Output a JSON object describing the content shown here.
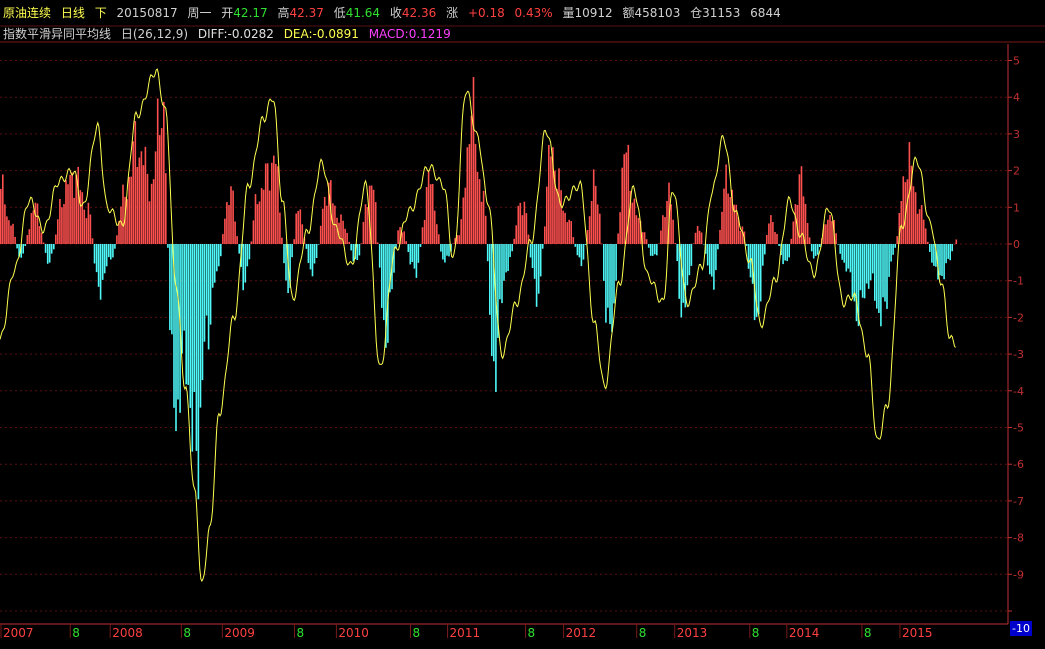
{
  "header": {
    "title": "原油连续",
    "period": "日线",
    "direction": "下",
    "date": "20150817",
    "weekday": "周一",
    "open_label": "开",
    "open": "42.17",
    "high_label": "高",
    "high": "42.37",
    "low_label": "低",
    "low": "41.64",
    "close_label": "收",
    "close": "42.36",
    "change_label": "涨",
    "change": "+0.18",
    "change_pct": "0.43%",
    "volume": "量10912",
    "amount": "额458103",
    "open_interest": "仓31153",
    "extra": "6844"
  },
  "indicator": {
    "name": "指数平滑异同平均线",
    "params": "日(26,12,9)",
    "diff": "DIFF:-0.0282",
    "dea": "DEA:-0.0891",
    "macd": "MACD:0.1219"
  },
  "colors": {
    "positive_bar": "#ff5050",
    "negative_bar": "#4ff8f8",
    "dea_line": "#ffff50",
    "axis": "#c03030",
    "up_text": "#ff4040",
    "down_text": "#30e030"
  },
  "chart_data": {
    "type": "bar",
    "y_ticks": [
      "5",
      "4",
      "3",
      "2",
      "1",
      "0",
      "-1",
      "-2",
      "-3",
      "-4",
      "-5",
      "-6",
      "-7",
      "-8",
      "-9",
      "-10"
    ],
    "ylim": [
      -10,
      5.5
    ],
    "x_labels": [
      "2007",
      "8",
      "2008",
      "8",
      "2009",
      "8",
      "2010",
      "8",
      "2011",
      "8",
      "2012",
      "8",
      "2013",
      "8",
      "2014",
      "8",
      "2015"
    ],
    "x_label_colors": [
      "#ff4040",
      "#30e030",
      "#ff4040",
      "#30e030",
      "#ff4040",
      "#30e030",
      "#ff4040",
      "#30e030",
      "#ff4040",
      "#30e030",
      "#ff4040",
      "#30e030",
      "#ff4040",
      "#30e030",
      "#ff4040",
      "#30e030",
      "#ff4040"
    ],
    "x_label_positions": [
      0,
      0.071,
      0.112,
      0.185,
      0.227,
      0.301,
      0.344,
      0.42,
      0.458,
      0.538,
      0.577,
      0.652,
      0.691,
      0.768,
      0.806,
      0.883,
      0.922
    ],
    "bottom_badge": "-10",
    "series": [
      {
        "name": "MACD",
        "anchors": [
          [
            0,
            1.5
          ],
          [
            0.01,
            0.6
          ],
          [
            0.02,
            -0.4
          ],
          [
            0.035,
            1.0
          ],
          [
            0.05,
            -0.5
          ],
          [
            0.065,
            1.4
          ],
          [
            0.075,
            1.9
          ],
          [
            0.09,
            0.9
          ],
          [
            0.1,
            -1.2
          ],
          [
            0.115,
            -0.3
          ],
          [
            0.125,
            1.2
          ],
          [
            0.14,
            2.7
          ],
          [
            0.155,
            1.6
          ],
          [
            0.165,
            4.0
          ],
          [
            0.178,
            -4.5
          ],
          [
            0.19,
            -3.2
          ],
          [
            0.2,
            -6.0
          ],
          [
            0.21,
            -2.8
          ],
          [
            0.22,
            -1.0
          ],
          [
            0.235,
            1.4
          ],
          [
            0.25,
            -1.0
          ],
          [
            0.265,
            1.4
          ],
          [
            0.28,
            2.3
          ],
          [
            0.295,
            -1.2
          ],
          [
            0.305,
            0.9
          ],
          [
            0.32,
            -0.8
          ],
          [
            0.335,
            1.5
          ],
          [
            0.35,
            0.6
          ],
          [
            0.365,
            -0.5
          ],
          [
            0.38,
            1.7
          ],
          [
            0.395,
            -2.4
          ],
          [
            0.41,
            0.5
          ],
          [
            0.425,
            -0.8
          ],
          [
            0.44,
            1.7
          ],
          [
            0.455,
            -0.5
          ],
          [
            0.47,
            0.3
          ],
          [
            0.483,
            3.5
          ],
          [
            0.495,
            1.2
          ],
          [
            0.505,
            -3.3
          ],
          [
            0.52,
            -0.6
          ],
          [
            0.535,
            1.2
          ],
          [
            0.55,
            -1.4
          ],
          [
            0.565,
            2.5
          ],
          [
            0.58,
            0.8
          ],
          [
            0.595,
            -0.5
          ],
          [
            0.61,
            1.6
          ],
          [
            0.625,
            -2.5
          ],
          [
            0.64,
            2.4
          ],
          [
            0.655,
            0.6
          ],
          [
            0.67,
            -0.4
          ],
          [
            0.685,
            1.3
          ],
          [
            0.7,
            -1.8
          ],
          [
            0.715,
            0.5
          ],
          [
            0.73,
            -1.0
          ],
          [
            0.745,
            1.7
          ],
          [
            0.76,
            0.5
          ],
          [
            0.775,
            -1.9
          ],
          [
            0.79,
            0.7
          ],
          [
            0.805,
            -0.6
          ],
          [
            0.82,
            1.7
          ],
          [
            0.835,
            -0.4
          ],
          [
            0.85,
            0.8
          ],
          [
            0.865,
            -0.5
          ],
          [
            0.88,
            -1.9
          ],
          [
            0.89,
            -1.0
          ],
          [
            0.905,
            -2.0
          ],
          [
            0.915,
            -0.3
          ],
          [
            0.93,
            2.2
          ],
          [
            0.945,
            0.8
          ],
          [
            0.955,
            -0.4
          ],
          [
            0.962,
            -1.0
          ],
          [
            0.972,
            -0.5
          ],
          [
            0.98,
            0.1
          ]
        ]
      },
      {
        "name": "DEA",
        "anchors": [
          [
            0,
            -2.6
          ],
          [
            0.015,
            -0.7
          ],
          [
            0.03,
            1.2
          ],
          [
            0.045,
            0.4
          ],
          [
            0.06,
            1.7
          ],
          [
            0.075,
            2.0
          ],
          [
            0.085,
            1.0
          ],
          [
            0.1,
            3.2
          ],
          [
            0.11,
            1.0
          ],
          [
            0.125,
            0.5
          ],
          [
            0.14,
            3.5
          ],
          [
            0.16,
            4.7
          ],
          [
            0.17,
            3.6
          ],
          [
            0.18,
            -1.0
          ],
          [
            0.19,
            -3.9
          ],
          [
            0.2,
            -6.8
          ],
          [
            0.207,
            -9.3
          ],
          [
            0.215,
            -7.8
          ],
          [
            0.225,
            -4.6
          ],
          [
            0.24,
            -2.0
          ],
          [
            0.255,
            1.6
          ],
          [
            0.27,
            3.4
          ],
          [
            0.28,
            4.0
          ],
          [
            0.29,
            1.1
          ],
          [
            0.3,
            -1.5
          ],
          [
            0.315,
            0.3
          ],
          [
            0.33,
            2.2
          ],
          [
            0.345,
            0.4
          ],
          [
            0.36,
            -0.6
          ],
          [
            0.375,
            1.6
          ],
          [
            0.39,
            -3.4
          ],
          [
            0.405,
            -0.2
          ],
          [
            0.42,
            0.9
          ],
          [
            0.44,
            2.1
          ],
          [
            0.455,
            1.6
          ],
          [
            0.465,
            -0.4
          ],
          [
            0.478,
            4.2
          ],
          [
            0.49,
            2.9
          ],
          [
            0.5,
            1.2
          ],
          [
            0.515,
            -3.0
          ],
          [
            0.53,
            -1.6
          ],
          [
            0.545,
            0.1
          ],
          [
            0.56,
            3.1
          ],
          [
            0.575,
            1.1
          ],
          [
            0.595,
            1.6
          ],
          [
            0.61,
            -2.2
          ],
          [
            0.62,
            -3.9
          ],
          [
            0.635,
            -1.1
          ],
          [
            0.65,
            1.5
          ],
          [
            0.665,
            -0.9
          ],
          [
            0.68,
            -1.6
          ],
          [
            0.69,
            1.5
          ],
          [
            0.705,
            -1.6
          ],
          [
            0.72,
            -0.6
          ],
          [
            0.73,
            1.4
          ],
          [
            0.742,
            2.9
          ],
          [
            0.755,
            0.8
          ],
          [
            0.77,
            -0.5
          ],
          [
            0.78,
            -2.2
          ],
          [
            0.795,
            -1.0
          ],
          [
            0.81,
            1.2
          ],
          [
            0.82,
            0.3
          ],
          [
            0.835,
            -0.8
          ],
          [
            0.85,
            1.0
          ],
          [
            0.865,
            -1.6
          ],
          [
            0.875,
            -1.4
          ],
          [
            0.89,
            -3.0
          ],
          [
            0.9,
            -5.4
          ],
          [
            0.91,
            -4.4
          ],
          [
            0.925,
            0.5
          ],
          [
            0.94,
            2.3
          ],
          [
            0.955,
            0.5
          ],
          [
            0.965,
            -1.0
          ],
          [
            0.975,
            -2.6
          ],
          [
            0.98,
            -2.7
          ]
        ]
      }
    ]
  }
}
